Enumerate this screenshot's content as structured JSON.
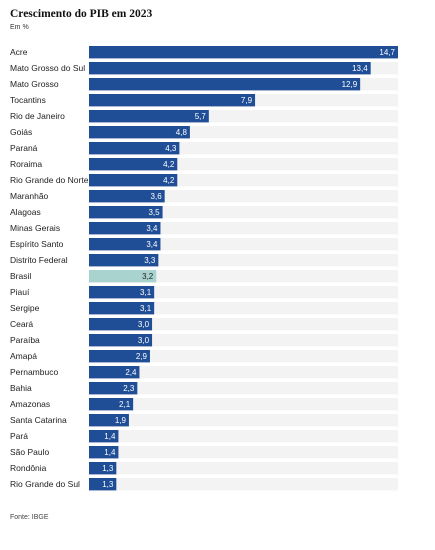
{
  "title": "Crescimento do PIB em 2023",
  "subtitle": "Em %",
  "source": "Fonte: IBGE",
  "colors": {
    "bar": "#1f4e96",
    "highlight": "#a9d3ce",
    "track": "#f3f3f3",
    "value_on_bar": "#ffffff",
    "value_on_highlight": "#222222"
  },
  "chart_data": {
    "type": "bar",
    "orientation": "horizontal",
    "categories": [
      "Acre",
      "Mato Grosso do Sul",
      "Mato Grosso",
      "Tocantins",
      "Rio de Janeiro",
      "Goiás",
      "Paraná",
      "Roraima",
      "Rio Grande do Norte",
      "Maranhão",
      "Alagoas",
      "Minas Gerais",
      "Espírito Santo",
      "Distrito Federal",
      "Brasil",
      "Piauí",
      "Sergipe",
      "Ceará",
      "Paraíba",
      "Amapá",
      "Pernambuco",
      "Bahia",
      "Amazonas",
      "Santa Catarina",
      "Pará",
      "São Paulo",
      "Rondônia",
      "Rio Grande do Sul"
    ],
    "values": [
      14.7,
      13.4,
      12.9,
      7.9,
      5.7,
      4.8,
      4.3,
      4.2,
      4.2,
      3.6,
      3.5,
      3.4,
      3.4,
      3.3,
      3.2,
      3.1,
      3.1,
      3.0,
      3.0,
      2.9,
      2.4,
      2.3,
      2.1,
      1.9,
      1.4,
      1.4,
      1.3,
      1.3
    ],
    "value_labels": [
      "14,7",
      "13,4",
      "12,9",
      "7,9",
      "5,7",
      "4,8",
      "4,3",
      "4,2",
      "4,2",
      "3,6",
      "3,5",
      "3,4",
      "3,4",
      "3,3",
      "3,2",
      "3,1",
      "3,1",
      "3,0",
      "3,0",
      "2,9",
      "2,4",
      "2,3",
      "2,1",
      "1,9",
      "1,4",
      "1,4",
      "1,3",
      "1,3"
    ],
    "highlight": "Brasil",
    "xlim": [
      0,
      14.7
    ],
    "grid": false,
    "legend": "none"
  }
}
